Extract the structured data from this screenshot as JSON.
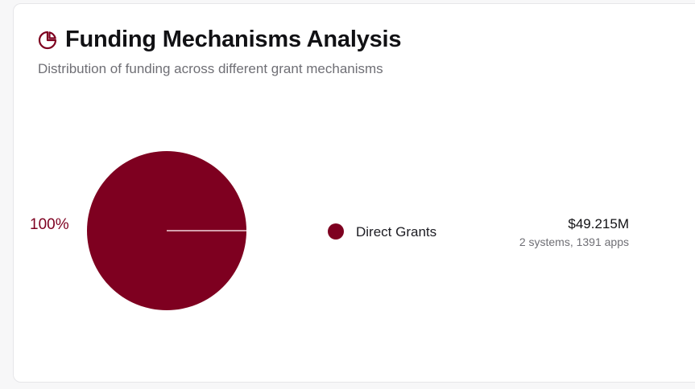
{
  "card": {
    "title": "Funding Mechanisms Analysis",
    "subtitle": "Distribution of funding across different grant mechanisms",
    "title_icon": "pie-chart-icon"
  },
  "colors": {
    "accent": "#7e0020",
    "divider": "#f0d6dc"
  },
  "chart_data": {
    "type": "pie",
    "categories": [
      "Direct Grants"
    ],
    "values": [
      100
    ],
    "slice_labels": [
      "100%"
    ]
  },
  "legend": [
    {
      "name": "Direct Grants",
      "amount": "$49.215M",
      "meta": "2 systems, 1391 apps"
    }
  ]
}
